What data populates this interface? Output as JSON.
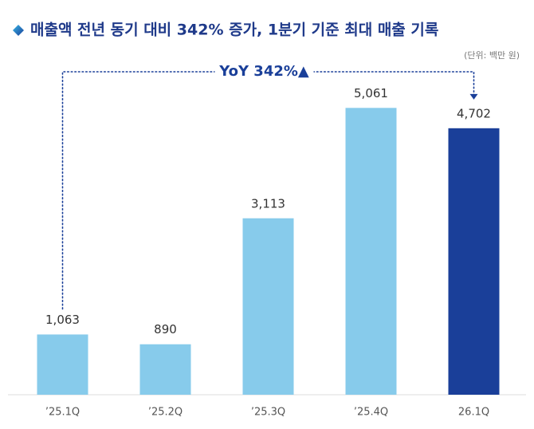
{
  "chart_data": {
    "type": "bar",
    "title": "매출액 전년 동기 대비 342% 증가, 1분기 기준 최대 매출 기록",
    "subtitle": "(단위: 백만 원)",
    "annotation": "YoY 342%▲",
    "categories": [
      "’25.1Q",
      "’25.2Q",
      "’25.3Q",
      "’25.4Q",
      "26.1Q"
    ],
    "values": [
      1063,
      890,
      3113,
      5061,
      4702
    ],
    "value_labels": [
      "1,063",
      "890",
      "3,113",
      "5,061",
      "4,702"
    ],
    "colors": [
      "#87cbeb",
      "#87cbeb",
      "#87cbeb",
      "#87cbeb",
      "#1a3f99"
    ],
    "ylim": [
      0,
      5600
    ]
  }
}
